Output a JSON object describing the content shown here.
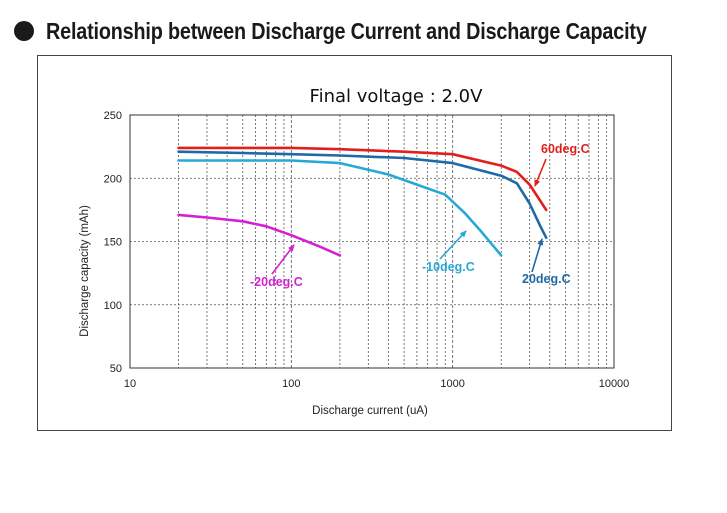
{
  "header": {
    "bullet_icon": "filled-circle-icon",
    "title": "Relationship between Discharge Current and Discharge Capacity"
  },
  "chart_data": {
    "type": "line",
    "title": "Final voltage : 2.0V",
    "xlabel": "Discharge current (uA)",
    "ylabel": "Discharge capacity (mAh)",
    "xscale": "log",
    "xlim": [
      10,
      10000
    ],
    "ylim": [
      50,
      250
    ],
    "x_ticks": [
      10,
      100,
      1000,
      10000
    ],
    "x_tick_labels": [
      "10",
      "100",
      "1000",
      "10000"
    ],
    "y_ticks": [
      50,
      100,
      150,
      200,
      250
    ],
    "y_tick_labels": [
      "50",
      "100",
      "150",
      "200",
      "250"
    ],
    "grid": true,
    "series": [
      {
        "name": "60deg.C",
        "color": "#e0201c",
        "points": [
          [
            20,
            224
          ],
          [
            50,
            224
          ],
          [
            100,
            224
          ],
          [
            200,
            223
          ],
          [
            500,
            221
          ],
          [
            1000,
            219
          ],
          [
            2000,
            210
          ],
          [
            2500,
            205
          ],
          [
            3000,
            195
          ],
          [
            3500,
            182
          ],
          [
            3800,
            175
          ]
        ]
      },
      {
        "name": "20deg.C",
        "color": "#1e6aa8",
        "points": [
          [
            20,
            221
          ],
          [
            50,
            220
          ],
          [
            100,
            219
          ],
          [
            200,
            218
          ],
          [
            500,
            216
          ],
          [
            1000,
            212
          ],
          [
            2000,
            202
          ],
          [
            2500,
            196
          ],
          [
            3000,
            180
          ],
          [
            3500,
            162
          ],
          [
            3800,
            153
          ]
        ]
      },
      {
        "name": "-10deg.C",
        "color": "#27a9d6",
        "points": [
          [
            20,
            214
          ],
          [
            50,
            214
          ],
          [
            100,
            214
          ],
          [
            200,
            212
          ],
          [
            400,
            203
          ],
          [
            600,
            195
          ],
          [
            900,
            187
          ],
          [
            1200,
            172
          ],
          [
            1500,
            158
          ],
          [
            2000,
            139
          ]
        ]
      },
      {
        "name": "-20deg.C",
        "color": "#d41fd4",
        "points": [
          [
            20,
            171
          ],
          [
            30,
            169
          ],
          [
            50,
            166
          ],
          [
            70,
            162
          ],
          [
            100,
            155
          ],
          [
            150,
            146
          ],
          [
            200,
            139
          ]
        ]
      }
    ]
  }
}
